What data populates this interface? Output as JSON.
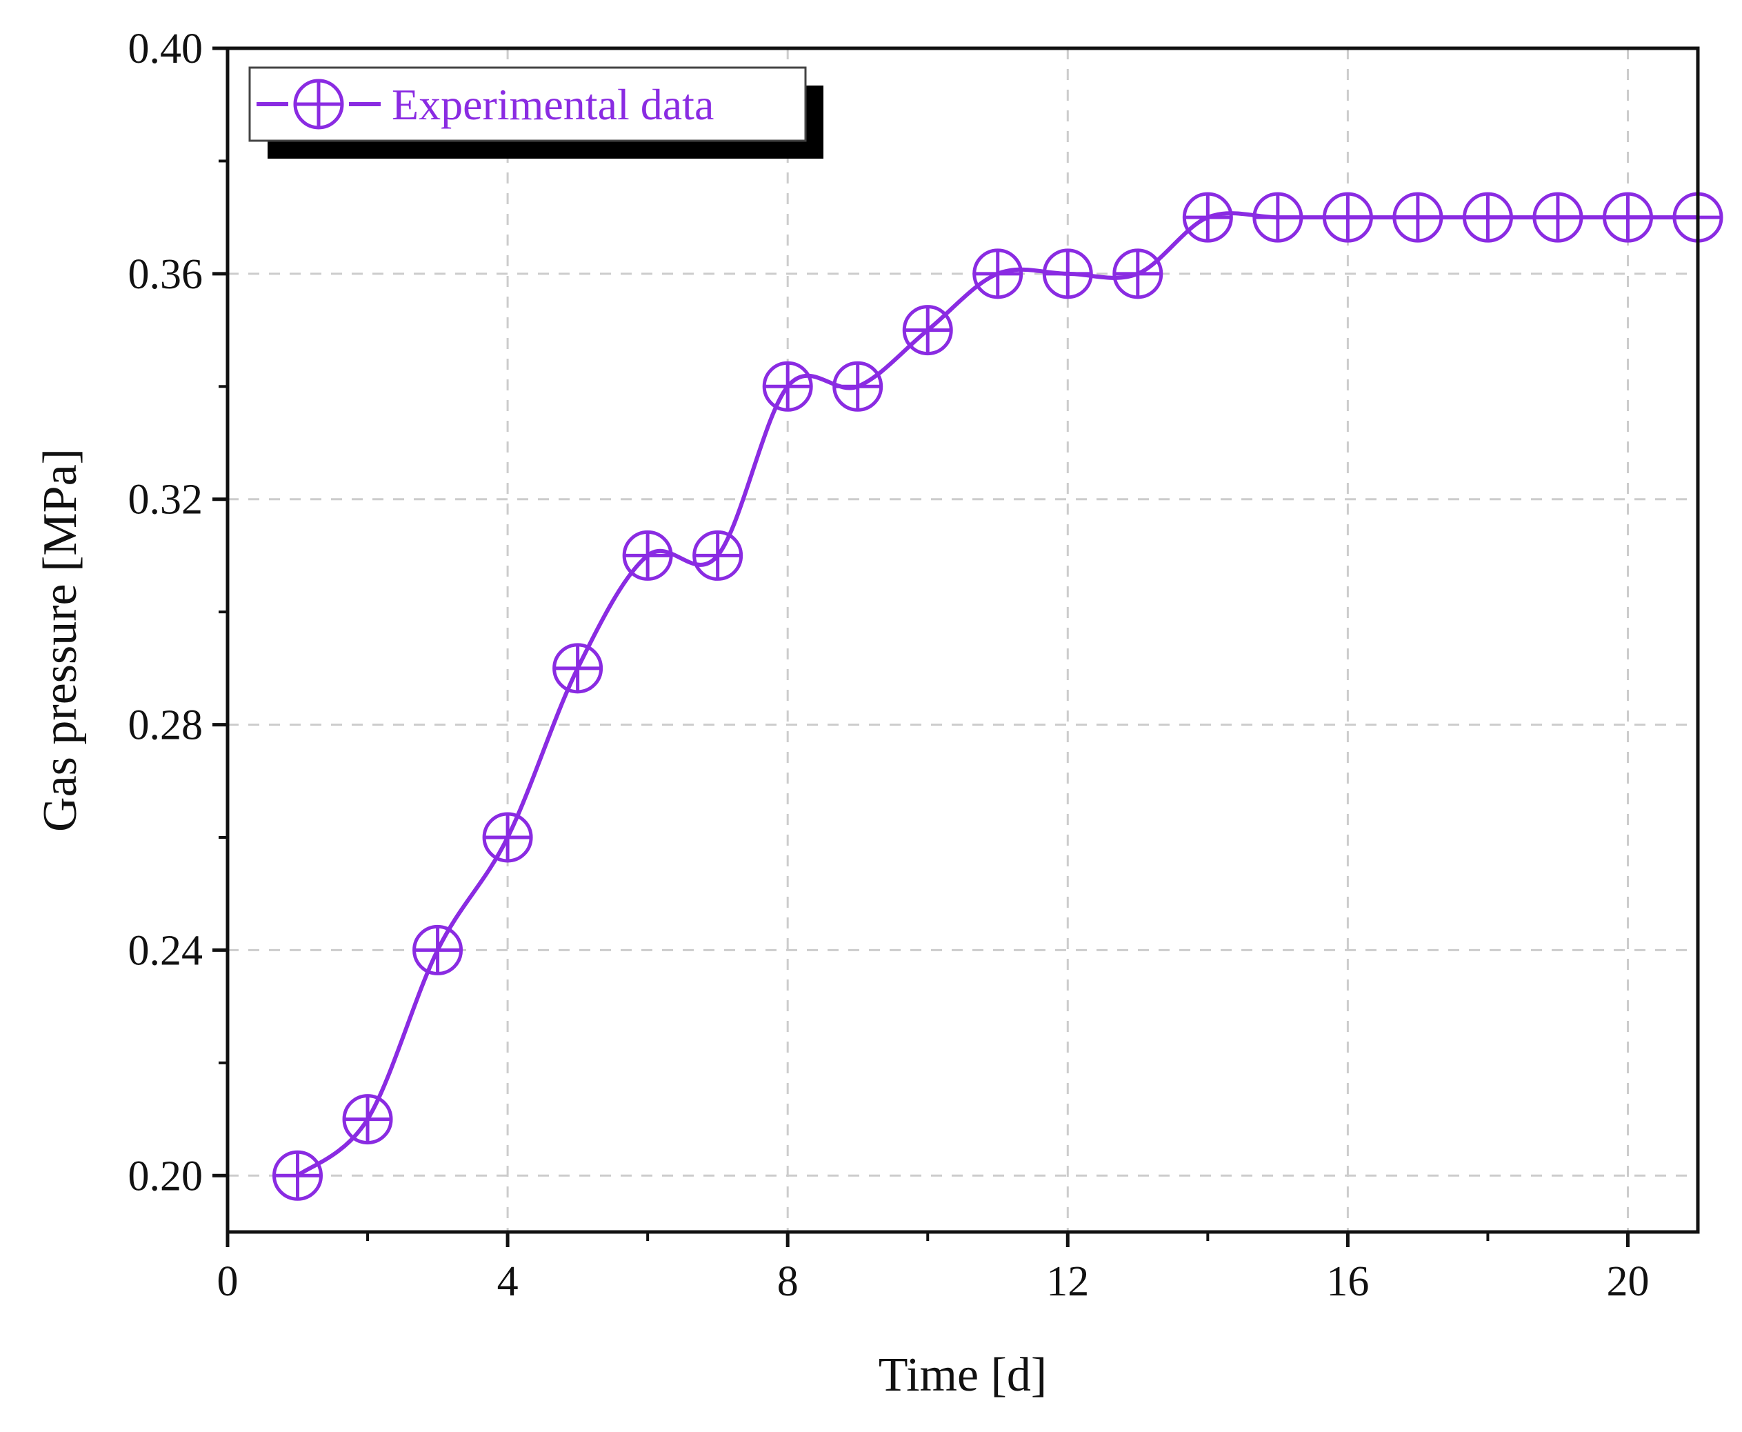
{
  "chart_data": {
    "type": "line",
    "title": "",
    "xlabel": "Time [d]",
    "ylabel": "Gas pressure [MPa]",
    "xlim": [
      0,
      21
    ],
    "ylim": [
      0.19,
      0.4
    ],
    "xticks": [
      0,
      4,
      8,
      12,
      16,
      20
    ],
    "xtick_labels": [
      "0",
      "4",
      "8",
      "12",
      "16",
      "20"
    ],
    "yticks": [
      0.2,
      0.24,
      0.28,
      0.32,
      0.36,
      0.4
    ],
    "ytick_labels": [
      "0.20",
      "0.24",
      "0.28",
      "0.32",
      "0.36",
      "0.40"
    ],
    "minor_ticks": true,
    "grid": true,
    "legend_position": "top-left",
    "series": [
      {
        "name": "Experimental data",
        "color": "#8A2BE2",
        "marker": "circle-plus",
        "x": [
          1,
          2,
          3,
          4,
          5,
          6,
          7,
          8,
          9,
          10,
          11,
          12,
          13,
          14,
          15,
          16,
          17,
          18,
          19,
          20,
          21
        ],
        "y": [
          0.2,
          0.21,
          0.24,
          0.26,
          0.29,
          0.31,
          0.31,
          0.34,
          0.34,
          0.35,
          0.36,
          0.36,
          0.36,
          0.37,
          0.37,
          0.37,
          0.37,
          0.37,
          0.37,
          0.37,
          0.37
        ]
      }
    ]
  }
}
